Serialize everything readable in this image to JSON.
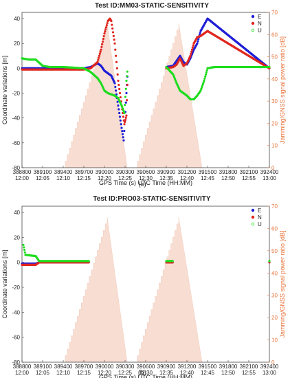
{
  "chart_data": [
    {
      "type": "scatter",
      "title": "Test ID:MM03-STATIC-SENSITIVITY",
      "caption": "(a)",
      "xlabel": "GPS Time (s) UTC Time (HH:MM)",
      "ylabel": "Coordinate variations [m]",
      "y2label": "Jamming/GNSS signal power ratio [dB]",
      "xlim": [
        388800,
        392400
      ],
      "ylim": [
        -80,
        45
      ],
      "y2lim": [
        0,
        70
      ],
      "x_ticks": [
        {
          "value": 388800,
          "gps": "388800",
          "utc": "12:00"
        },
        {
          "value": 389100,
          "gps": "389100",
          "utc": "12:05"
        },
        {
          "value": 389400,
          "gps": "389400",
          "utc": "12:10"
        },
        {
          "value": 389700,
          "gps": "389700",
          "utc": "12:15"
        },
        {
          "value": 390000,
          "gps": "390000",
          "utc": "12:20"
        },
        {
          "value": 390300,
          "gps": "390300",
          "utc": "12:25"
        },
        {
          "value": 390600,
          "gps": "390600",
          "utc": "12:30"
        },
        {
          "value": 390900,
          "gps": "390900",
          "utc": "12:35"
        },
        {
          "value": 391200,
          "gps": "391200",
          "utc": "12:40"
        },
        {
          "value": 391500,
          "gps": "391500",
          "utc": "12:45"
        },
        {
          "value": 391800,
          "gps": "391800",
          "utc": "12:50"
        },
        {
          "value": 392100,
          "gps": "392100",
          "utc": "12:55"
        },
        {
          "value": 392400,
          "gps": "392400",
          "utc": "13:00"
        }
      ],
      "y_ticks": [
        "40",
        "20",
        "0",
        "-20",
        "-40",
        "-60",
        "-80"
      ],
      "y2_ticks": [
        "70",
        "60",
        "50",
        "40",
        "30",
        "20",
        "10",
        "0"
      ],
      "jamming_color": "#f8ddd2",
      "jamming_peaks": [
        {
          "x_start": 389400,
          "x_peak": 390040,
          "x_end": 390330,
          "peak": 65
        },
        {
          "x_start": 390450,
          "x_peak": 391080,
          "x_end": 391420,
          "peak": 65
        }
      ],
      "legend": [
        "E",
        "N",
        "U"
      ],
      "legend_position": "top-right",
      "series": [
        {
          "name": "E",
          "color": "#1f1fd6",
          "points": [
            [
              388800,
              0
            ],
            [
              389000,
              0
            ],
            [
              389400,
              0
            ],
            [
              389700,
              0
            ],
            [
              389800,
              1
            ],
            [
              389900,
              4
            ],
            [
              389950,
              2
            ],
            [
              390000,
              -2
            ],
            [
              390050,
              -4
            ],
            [
              390100,
              -6
            ],
            [
              390150,
              -12
            ],
            [
              390200,
              -30
            ],
            [
              390250,
              -48
            ],
            [
              390280,
              -58
            ],
            [
              390320,
              -20
            ],
            [
              390340,
              0
            ],
            [
              390600,
              1
            ],
            [
              390900,
              1
            ],
            [
              391000,
              2
            ],
            [
              391050,
              6
            ],
            [
              391100,
              10
            ],
            [
              391150,
              5
            ],
            [
              391200,
              3
            ],
            [
              391250,
              8
            ],
            [
              391300,
              15
            ],
            [
              391350,
              20
            ],
            [
              391400,
              30
            ],
            [
              391450,
              35
            ],
            [
              391500,
              40
            ],
            [
              392400,
              0
            ]
          ]
        },
        {
          "name": "N",
          "color": "#e0261f",
          "points": [
            [
              388800,
              -1
            ],
            [
              389000,
              -1
            ],
            [
              389400,
              -1
            ],
            [
              389700,
              -1
            ],
            [
              389800,
              0
            ],
            [
              389900,
              5
            ],
            [
              389950,
              15
            ],
            [
              390000,
              28
            ],
            [
              390050,
              38
            ],
            [
              390080,
              40
            ],
            [
              390100,
              38
            ],
            [
              390150,
              20
            ],
            [
              390200,
              -10
            ],
            [
              390250,
              -30
            ],
            [
              390290,
              -45
            ],
            [
              390320,
              -38
            ],
            [
              390340,
              -1
            ],
            [
              390600,
              0
            ],
            [
              390900,
              0
            ],
            [
              391000,
              1
            ],
            [
              391050,
              3
            ],
            [
              391100,
              8
            ],
            [
              391150,
              2
            ],
            [
              391200,
              4
            ],
            [
              391250,
              10
            ],
            [
              391300,
              20
            ],
            [
              391350,
              25
            ],
            [
              391400,
              26
            ],
            [
              391450,
              28
            ],
            [
              391500,
              30
            ],
            [
              392400,
              0
            ]
          ]
        },
        {
          "name": "U",
          "color": "#1fdc1f",
          "points": [
            [
              388800,
              8
            ],
            [
              388900,
              7
            ],
            [
              389000,
              7
            ],
            [
              389100,
              2
            ],
            [
              389200,
              1
            ],
            [
              389400,
              1
            ],
            [
              389700,
              0
            ],
            [
              389800,
              -3
            ],
            [
              389900,
              -8
            ],
            [
              389950,
              -12
            ],
            [
              390000,
              -18
            ],
            [
              390050,
              -20
            ],
            [
              390100,
              -21
            ],
            [
              390150,
              -22
            ],
            [
              390200,
              -24
            ],
            [
              390250,
              -30
            ],
            [
              390290,
              -36
            ],
            [
              390320,
              -10
            ],
            [
              390340,
              1
            ],
            [
              390600,
              1
            ],
            [
              390900,
              1
            ],
            [
              391000,
              -5
            ],
            [
              391050,
              -12
            ],
            [
              391100,
              -18
            ],
            [
              391150,
              -20
            ],
            [
              391200,
              -22
            ],
            [
              391250,
              -25
            ],
            [
              391300,
              -25
            ],
            [
              391350,
              -22
            ],
            [
              391400,
              -18
            ],
            [
              391450,
              -10
            ],
            [
              391500,
              0
            ],
            [
              391600,
              1
            ],
            [
              392400,
              1
            ]
          ]
        }
      ]
    },
    {
      "type": "scatter",
      "title": "Test ID:PRO03-STATIC-SENSITIVITY",
      "caption": "(b)",
      "xlabel": "GPS Time (s) UTC Time (HH:MM)",
      "ylabel": "Coordinate variations [m]",
      "y2label": "Jamming/GNSS signal power ratio [dB]",
      "xlim": [
        388800,
        392400
      ],
      "ylim": [
        -80,
        45
      ],
      "y2lim": [
        0,
        70
      ],
      "x_ticks": [
        {
          "value": 388800,
          "gps": "388800",
          "utc": "12:00"
        },
        {
          "value": 389100,
          "gps": "389100",
          "utc": "12:05"
        },
        {
          "value": 389400,
          "gps": "389400",
          "utc": "12:10"
        },
        {
          "value": 389700,
          "gps": "389700",
          "utc": "12:15"
        },
        {
          "value": 390000,
          "gps": "390000",
          "utc": "12:20"
        },
        {
          "value": 390300,
          "gps": "390300",
          "utc": "12:25"
        },
        {
          "value": 390600,
          "gps": "390600",
          "utc": "12:30"
        },
        {
          "value": 390900,
          "gps": "390900",
          "utc": "12:35"
        },
        {
          "value": 391200,
          "gps": "391200",
          "utc": "12:40"
        },
        {
          "value": 391500,
          "gps": "391500",
          "utc": "12:45"
        },
        {
          "value": 391800,
          "gps": "391800",
          "utc": "12:50"
        },
        {
          "value": 392100,
          "gps": "392100",
          "utc": "12:55"
        },
        {
          "value": 392400,
          "gps": "392400",
          "utc": "13:00"
        }
      ],
      "y_ticks": [
        "40",
        "20",
        "0",
        "-20",
        "-40",
        "-60",
        "-80"
      ],
      "y2_ticks": [
        "70",
        "60",
        "50",
        "40",
        "30",
        "20",
        "10",
        "0"
      ],
      "jamming_color": "#f8ddd2",
      "jamming_peaks": [
        {
          "x_start": 389400,
          "x_peak": 390040,
          "x_end": 390330,
          "peak": 65
        },
        {
          "x_start": 390450,
          "x_peak": 391080,
          "x_end": 391420,
          "peak": 65
        }
      ],
      "legend": [
        "E",
        "N",
        "U"
      ],
      "legend_position": "top-right",
      "series": [
        {
          "name": "E",
          "color": "#1f1fd6",
          "points": [
            [
              388800,
              -1
            ],
            [
              389000,
              -1
            ],
            [
              389050,
              0
            ],
            [
              389400,
              0
            ],
            [
              389700,
              0
            ],
            [
              389780,
              0
            ],
            [
              390330,
              0
            ],
            [
              390600,
              0
            ],
            [
              390900,
              0
            ],
            [
              391000,
              0
            ],
            [
              391450,
              0
            ],
            [
              392400,
              0
            ]
          ]
        },
        {
          "name": "N",
          "color": "#e0261f",
          "points": [
            [
              388800,
              -2
            ],
            [
              389000,
              -2
            ],
            [
              389050,
              0
            ],
            [
              389400,
              0
            ],
            [
              389700,
              0
            ],
            [
              389780,
              0
            ],
            [
              390330,
              0
            ],
            [
              390600,
              0
            ],
            [
              390900,
              0
            ],
            [
              391000,
              0
            ],
            [
              391450,
              0
            ],
            [
              392400,
              0
            ]
          ]
        },
        {
          "name": "U",
          "color": "#1fdc1f",
          "points": [
            [
              388820,
              14
            ],
            [
              388850,
              6
            ],
            [
              389000,
              5
            ],
            [
              389050,
              1
            ],
            [
              389400,
              1
            ],
            [
              389700,
              1
            ],
            [
              389780,
              1
            ],
            [
              390330,
              1
            ],
            [
              390600,
              1
            ],
            [
              390900,
              1
            ],
            [
              391000,
              1
            ],
            [
              391450,
              1
            ],
            [
              392400,
              1
            ]
          ]
        }
      ]
    }
  ]
}
